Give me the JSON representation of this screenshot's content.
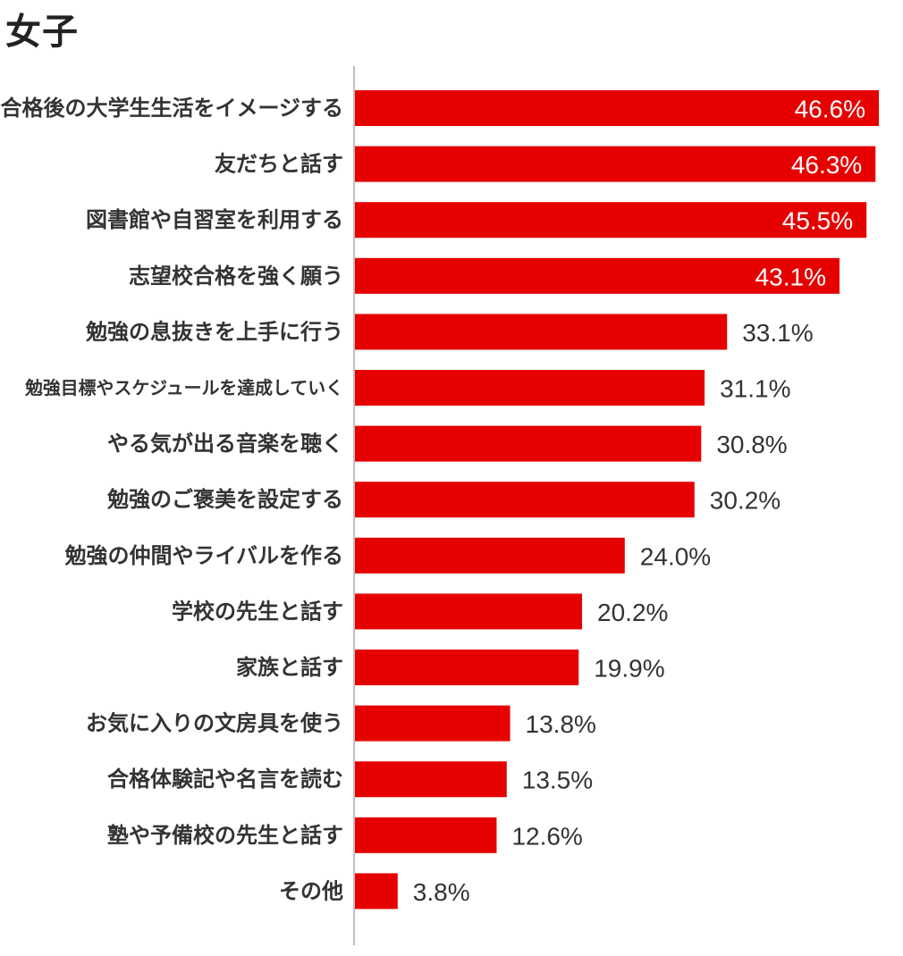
{
  "title": "女子",
  "chart_data": {
    "type": "bar",
    "orientation": "horizontal",
    "categories": [
      "合格後の大学生生活をイメージする",
      "友だちと話す",
      "図書館や自習室を利用する",
      "志望校合格を強く願う",
      "勉強の息抜きを上手に行う",
      "勉強目標やスケジュールを達成していく",
      "やる気が出る音楽を聴く",
      "勉強のご褒美を設定する",
      "勉強の仲間やライバルを作る",
      "学校の先生と話す",
      "家族と話す",
      "お気に入りの文房具を使う",
      "合格体験記や名言を読む",
      "塾や予備校の先生と話す",
      "その他"
    ],
    "values": [
      46.6,
      46.3,
      45.5,
      43.1,
      33.1,
      31.1,
      30.8,
      30.2,
      24.0,
      20.2,
      19.9,
      13.8,
      13.5,
      12.6,
      3.8
    ],
    "value_labels": [
      "46.6%",
      "46.3%",
      "45.5%",
      "43.1%",
      "33.1%",
      "31.1%",
      "30.8%",
      "30.2%",
      "24.0%",
      "20.2%",
      "19.9%",
      "13.8%",
      "13.5%",
      "12.6%",
      "3.8%"
    ],
    "labels_inside_threshold": 40,
    "xlim": [
      0,
      46.6
    ],
    "bar_color": "#e60000",
    "axis_color": "#aaaaaa",
    "label_color": "#333333",
    "inside_label_color": "#ffffff",
    "grid": false,
    "legend": "none"
  }
}
